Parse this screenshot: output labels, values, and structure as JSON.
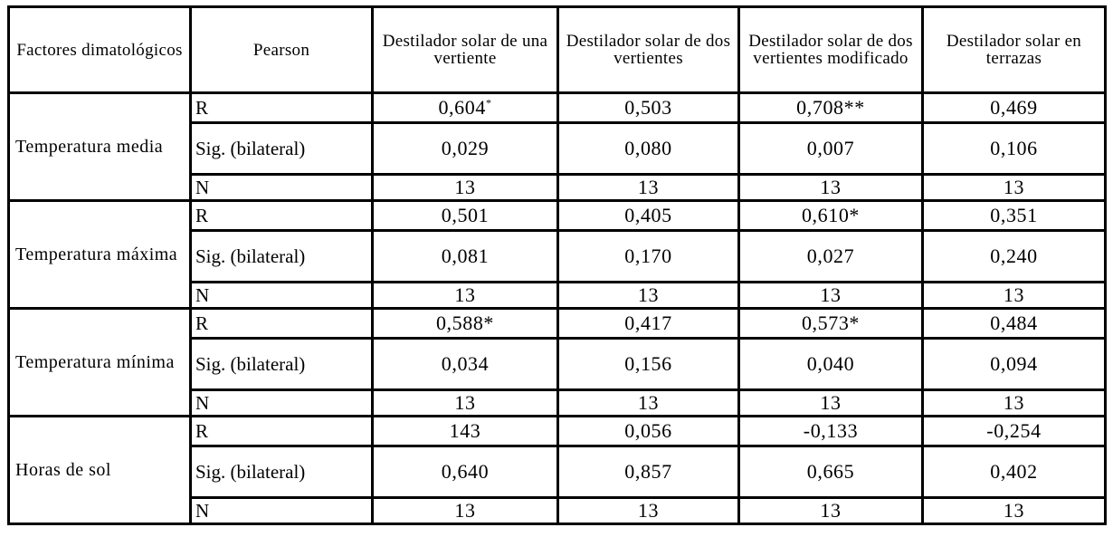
{
  "header": {
    "factor": "Factores dimatológicos",
    "pearson": "Pearson",
    "columns": [
      "Destilador solar de una vertiente",
      "Destilador solar de dos vertientes",
      "Destilador solar de dos vertientes modificado",
      "Destilador solar en terrazas"
    ]
  },
  "groups": [
    {
      "factor": "Temperatura media",
      "rows": [
        {
          "stat": "R",
          "values": [
            "0,604",
            "0,503",
            "0,708**",
            "0,469"
          ],
          "bold": [
            true,
            false,
            true,
            false
          ],
          "sup": [
            "*",
            "",
            "",
            ""
          ]
        },
        {
          "stat": "Sig. (bilateral)",
          "values": [
            "0,029",
            "0,080",
            "0,007",
            "0,106"
          ],
          "bold": [
            false,
            false,
            false,
            false
          ],
          "sup": [
            "",
            "",
            "",
            ""
          ]
        },
        {
          "stat": "N",
          "values": [
            "13",
            "13",
            "13",
            "13"
          ],
          "bold": [
            false,
            false,
            false,
            false
          ],
          "sup": [
            "",
            "",
            "",
            ""
          ]
        }
      ]
    },
    {
      "factor": "Temperatura máxima",
      "rows": [
        {
          "stat": "R",
          "values": [
            "0,501",
            "0,405",
            "0,610*",
            "0,351"
          ],
          "bold": [
            false,
            false,
            true,
            false
          ],
          "sup": [
            "",
            "",
            "",
            ""
          ]
        },
        {
          "stat": "Sig. (bilateral)",
          "values": [
            "0,081",
            "0,170",
            "0,027",
            "0,240"
          ],
          "bold": [
            false,
            false,
            false,
            false
          ],
          "sup": [
            "",
            "",
            "",
            ""
          ]
        },
        {
          "stat": "N",
          "values": [
            "13",
            "13",
            "13",
            "13"
          ],
          "bold": [
            false,
            false,
            false,
            false
          ],
          "sup": [
            "",
            "",
            "",
            ""
          ]
        }
      ]
    },
    {
      "factor": "Temperatura mínima",
      "rows": [
        {
          "stat": "R",
          "values": [
            "0,588*",
            "0,417",
            "0,573*",
            "0,484"
          ],
          "bold": [
            true,
            false,
            true,
            false
          ],
          "sup": [
            "",
            "",
            "",
            ""
          ]
        },
        {
          "stat": "Sig. (bilateral)",
          "values": [
            "0,034",
            "0,156",
            "0,040",
            "0,094"
          ],
          "bold": [
            false,
            false,
            false,
            false
          ],
          "sup": [
            "",
            "",
            "",
            ""
          ]
        },
        {
          "stat": "N",
          "values": [
            "13",
            "13",
            "13",
            "13"
          ],
          "bold": [
            false,
            false,
            false,
            false
          ],
          "sup": [
            "",
            "",
            "",
            ""
          ]
        }
      ]
    },
    {
      "factor": "Horas de sol",
      "rows": [
        {
          "stat": "R",
          "values": [
            "143",
            "0,056",
            "-0,133",
            "-0,254"
          ],
          "bold": [
            false,
            false,
            false,
            false
          ],
          "sup": [
            "",
            "",
            "",
            ""
          ]
        },
        {
          "stat": "Sig. (bilateral)",
          "values": [
            "0,640",
            "0,857",
            "0,665",
            "0,402"
          ],
          "bold": [
            false,
            false,
            false,
            false
          ],
          "sup": [
            "",
            "",
            "",
            ""
          ]
        },
        {
          "stat": "N",
          "values": [
            "13",
            "13",
            "13",
            "13"
          ],
          "bold": [
            false,
            false,
            false,
            false
          ],
          "sup": [
            "",
            "",
            "",
            ""
          ]
        }
      ]
    }
  ]
}
